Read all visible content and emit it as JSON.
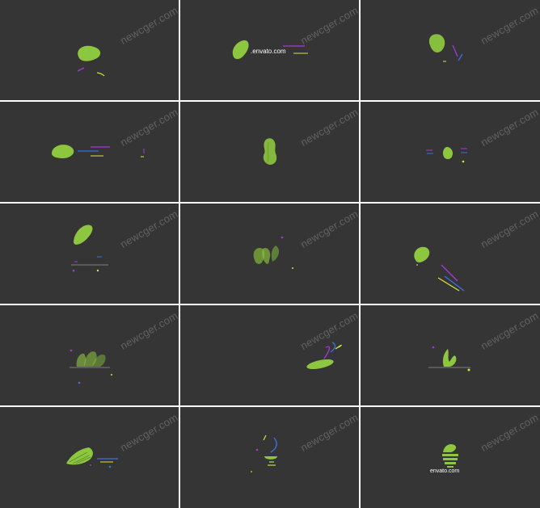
{
  "watermark": "newcger.com",
  "envato_label": "envato.com",
  "envato_label_partial": ".envato.com",
  "colors": {
    "background": "#353535",
    "logo_green": "#8dc63f",
    "accent_purple": "#a23ad6",
    "accent_blue": "#3f6fe0",
    "accent_yellow": "#d8e23a",
    "divider": "#ffffff"
  },
  "frames": [
    {
      "name": "frame-1"
    },
    {
      "name": "frame-2"
    },
    {
      "name": "frame-3"
    },
    {
      "name": "frame-4"
    },
    {
      "name": "frame-5"
    },
    {
      "name": "frame-6"
    },
    {
      "name": "frame-7"
    },
    {
      "name": "frame-8"
    },
    {
      "name": "frame-9"
    },
    {
      "name": "frame-10"
    },
    {
      "name": "frame-11"
    },
    {
      "name": "frame-12"
    },
    {
      "name": "frame-13"
    },
    {
      "name": "frame-14"
    },
    {
      "name": "frame-15"
    }
  ]
}
